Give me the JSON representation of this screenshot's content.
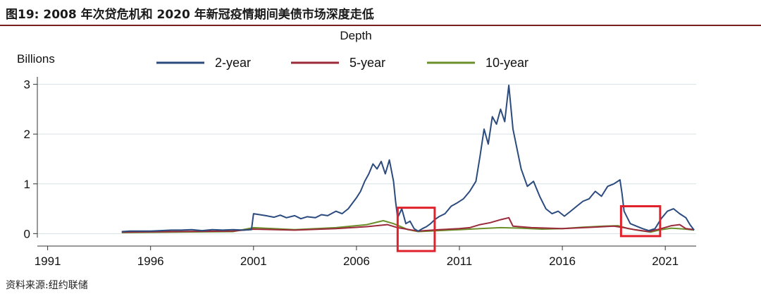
{
  "figure": {
    "title": "图19:   2008 年次贷危机和 2020 年新冠疫情期间美债市场深度走低",
    "source": "资料来源:纽约联储"
  },
  "chart_data": {
    "type": "line",
    "title": "Depth",
    "ylabel": "Billions",
    "xlabel": "",
    "xlim": [
      1990.5,
      2022.5
    ],
    "ylim": [
      -0.25,
      3.15
    ],
    "x_ticks": [
      1991,
      1996,
      2001,
      2006,
      2011,
      2016,
      2021
    ],
    "y_ticks": [
      0,
      1,
      2,
      3
    ],
    "grid": "horizontal",
    "legend_position": "top",
    "colors": {
      "2-year": "#2b4b7e",
      "5-year": "#9b2a3a",
      "10-year": "#6b8f2a",
      "highlight": "#e0202a"
    },
    "series": [
      {
        "name": "2-year",
        "points": [
          [
            1994.6,
            0.04
          ],
          [
            1995.0,
            0.05
          ],
          [
            1995.5,
            0.05
          ],
          [
            1996.0,
            0.05
          ],
          [
            1996.5,
            0.06
          ],
          [
            1997.0,
            0.07
          ],
          [
            1997.5,
            0.07
          ],
          [
            1998.0,
            0.08
          ],
          [
            1998.5,
            0.06
          ],
          [
            1999.0,
            0.08
          ],
          [
            1999.5,
            0.07
          ],
          [
            2000.0,
            0.08
          ],
          [
            2000.5,
            0.07
          ],
          [
            2000.9,
            0.08
          ],
          [
            2001.0,
            0.4
          ],
          [
            2001.3,
            0.38
          ],
          [
            2001.6,
            0.36
          ],
          [
            2002.0,
            0.33
          ],
          [
            2002.3,
            0.37
          ],
          [
            2002.6,
            0.32
          ],
          [
            2003.0,
            0.36
          ],
          [
            2003.3,
            0.3
          ],
          [
            2003.6,
            0.34
          ],
          [
            2004.0,
            0.32
          ],
          [
            2004.3,
            0.38
          ],
          [
            2004.6,
            0.36
          ],
          [
            2005.0,
            0.45
          ],
          [
            2005.3,
            0.4
          ],
          [
            2005.6,
            0.5
          ],
          [
            2006.0,
            0.72
          ],
          [
            2006.2,
            0.85
          ],
          [
            2006.4,
            1.05
          ],
          [
            2006.6,
            1.2
          ],
          [
            2006.8,
            1.4
          ],
          [
            2007.0,
            1.3
          ],
          [
            2007.2,
            1.45
          ],
          [
            2007.4,
            1.2
          ],
          [
            2007.6,
            1.48
          ],
          [
            2007.8,
            1.05
          ],
          [
            2007.9,
            0.65
          ],
          [
            2008.0,
            0.32
          ],
          [
            2008.2,
            0.5
          ],
          [
            2008.4,
            0.2
          ],
          [
            2008.6,
            0.25
          ],
          [
            2008.8,
            0.1
          ],
          [
            2009.0,
            0.05
          ],
          [
            2009.2,
            0.1
          ],
          [
            2009.4,
            0.14
          ],
          [
            2009.6,
            0.2
          ],
          [
            2009.8,
            0.28
          ],
          [
            2010.0,
            0.34
          ],
          [
            2010.3,
            0.4
          ],
          [
            2010.6,
            0.55
          ],
          [
            2010.9,
            0.62
          ],
          [
            2011.2,
            0.7
          ],
          [
            2011.5,
            0.85
          ],
          [
            2011.8,
            1.05
          ],
          [
            2012.0,
            1.55
          ],
          [
            2012.2,
            2.1
          ],
          [
            2012.4,
            1.8
          ],
          [
            2012.6,
            2.35
          ],
          [
            2012.8,
            2.2
          ],
          [
            2013.0,
            2.5
          ],
          [
            2013.2,
            2.25
          ],
          [
            2013.4,
            2.98
          ],
          [
            2013.6,
            2.1
          ],
          [
            2013.8,
            1.7
          ],
          [
            2014.0,
            1.3
          ],
          [
            2014.3,
            0.95
          ],
          [
            2014.6,
            1.05
          ],
          [
            2014.9,
            0.75
          ],
          [
            2015.2,
            0.5
          ],
          [
            2015.5,
            0.4
          ],
          [
            2015.8,
            0.45
          ],
          [
            2016.1,
            0.35
          ],
          [
            2016.4,
            0.45
          ],
          [
            2016.7,
            0.55
          ],
          [
            2017.0,
            0.65
          ],
          [
            2017.3,
            0.7
          ],
          [
            2017.6,
            0.85
          ],
          [
            2017.9,
            0.75
          ],
          [
            2018.2,
            0.95
          ],
          [
            2018.5,
            1.0
          ],
          [
            2018.8,
            1.08
          ],
          [
            2018.9,
            0.8
          ],
          [
            2019.0,
            0.45
          ],
          [
            2019.3,
            0.2
          ],
          [
            2019.6,
            0.15
          ],
          [
            2019.9,
            0.1
          ],
          [
            2020.2,
            0.06
          ],
          [
            2020.5,
            0.1
          ],
          [
            2020.8,
            0.3
          ],
          [
            2021.1,
            0.45
          ],
          [
            2021.4,
            0.5
          ],
          [
            2021.7,
            0.4
          ],
          [
            2022.0,
            0.32
          ],
          [
            2022.2,
            0.18
          ],
          [
            2022.4,
            0.07
          ]
        ]
      },
      {
        "name": "5-year",
        "points": [
          [
            1994.6,
            0.03
          ],
          [
            1997.0,
            0.04
          ],
          [
            2000.0,
            0.05
          ],
          [
            2001.0,
            0.09
          ],
          [
            2003.0,
            0.07
          ],
          [
            2005.0,
            0.1
          ],
          [
            2006.5,
            0.14
          ],
          [
            2007.5,
            0.18
          ],
          [
            2008.0,
            0.12
          ],
          [
            2009.0,
            0.05
          ],
          [
            2010.0,
            0.08
          ],
          [
            2011.0,
            0.1
          ],
          [
            2011.5,
            0.12
          ],
          [
            2012.0,
            0.18
          ],
          [
            2012.5,
            0.22
          ],
          [
            2013.0,
            0.28
          ],
          [
            2013.4,
            0.32
          ],
          [
            2013.6,
            0.15
          ],
          [
            2014.5,
            0.12
          ],
          [
            2016.0,
            0.1
          ],
          [
            2017.5,
            0.13
          ],
          [
            2018.5,
            0.15
          ],
          [
            2019.0,
            0.12
          ],
          [
            2019.5,
            0.08
          ],
          [
            2020.2,
            0.04
          ],
          [
            2020.8,
            0.1
          ],
          [
            2021.3,
            0.16
          ],
          [
            2021.7,
            0.18
          ],
          [
            2022.0,
            0.1
          ],
          [
            2022.4,
            0.08
          ]
        ]
      },
      {
        "name": "10-year",
        "points": [
          [
            1994.6,
            0.02
          ],
          [
            1997.0,
            0.03
          ],
          [
            2000.0,
            0.04
          ],
          [
            2001.0,
            0.12
          ],
          [
            2003.0,
            0.08
          ],
          [
            2005.0,
            0.12
          ],
          [
            2006.5,
            0.18
          ],
          [
            2007.3,
            0.26
          ],
          [
            2007.8,
            0.2
          ],
          [
            2008.5,
            0.08
          ],
          [
            2009.0,
            0.04
          ],
          [
            2010.0,
            0.06
          ],
          [
            2011.0,
            0.08
          ],
          [
            2012.0,
            0.1
          ],
          [
            2013.0,
            0.12
          ],
          [
            2014.0,
            0.11
          ],
          [
            2015.0,
            0.09
          ],
          [
            2016.0,
            0.1
          ],
          [
            2017.0,
            0.13
          ],
          [
            2018.0,
            0.15
          ],
          [
            2018.7,
            0.16
          ],
          [
            2019.2,
            0.1
          ],
          [
            2019.8,
            0.06
          ],
          [
            2020.3,
            0.03
          ],
          [
            2020.8,
            0.08
          ],
          [
            2021.3,
            0.11
          ],
          [
            2022.0,
            0.09
          ],
          [
            2022.4,
            0.07
          ]
        ]
      }
    ],
    "highlights": [
      {
        "x": [
          2008.0,
          2009.8
        ],
        "y": [
          -0.35,
          0.52
        ]
      },
      {
        "x": [
          2018.85,
          2020.75
        ],
        "y": [
          -0.05,
          0.55
        ]
      }
    ]
  }
}
